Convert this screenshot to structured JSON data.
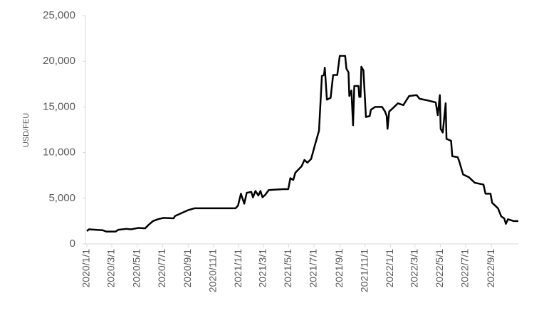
{
  "chart_data": {
    "type": "line",
    "y_label": "USD/FEU",
    "xlim": [
      "2020-01-01",
      "2022-11-05"
    ],
    "xticks": [
      {
        "value": "2020-01-01",
        "label": "2020/1/1"
      },
      {
        "value": "2020-03-01",
        "label": "2020/3/1"
      },
      {
        "value": "2020-05-01",
        "label": "2020/5/1"
      },
      {
        "value": "2020-07-01",
        "label": "2020/7/1"
      },
      {
        "value": "2020-09-01",
        "label": "2020/9/1"
      },
      {
        "value": "2020-11-01",
        "label": "2020/11/1"
      },
      {
        "value": "2021-01-01",
        "label": "2021/1/1"
      },
      {
        "value": "2021-03-01",
        "label": "2021/3/1"
      },
      {
        "value": "2021-05-01",
        "label": "2021/5/1"
      },
      {
        "value": "2021-07-01",
        "label": "2021/7/1"
      },
      {
        "value": "2021-09-01",
        "label": "2021/9/1"
      },
      {
        "value": "2021-11-01",
        "label": "2021/11/1"
      },
      {
        "value": "2022-01-01",
        "label": "2022/1/1"
      },
      {
        "value": "2022-03-01",
        "label": "2022/3/1"
      },
      {
        "value": "2022-05-01",
        "label": "2022/5/1"
      },
      {
        "value": "2022-07-01",
        "label": "2022/7/1"
      },
      {
        "value": "2022-09-01",
        "label": "2022/9/1"
      }
    ],
    "ylim": [
      0,
      25000
    ],
    "yticks": [
      0,
      {
        "value": 5000,
        "label": "5,000"
      },
      {
        "value": 10000,
        "label": "10,000"
      },
      {
        "value": 15000,
        "label": "15,000"
      },
      {
        "value": 20000,
        "label": "20,000"
      },
      {
        "value": 25000,
        "label": "25,000"
      }
    ],
    "grid": false,
    "x": [
      "2020-01-01",
      "2020-01-06",
      "2020-02-08",
      "2020-02-17",
      "2020-03-10",
      "2020-03-17",
      "2020-04-05",
      "2020-04-17",
      "2020-05-04",
      "2020-05-20",
      "2020-05-29",
      "2020-06-08",
      "2020-06-20",
      "2020-07-03",
      "2020-07-28",
      "2020-07-31",
      "2020-08-17",
      "2020-09-01",
      "2020-09-16",
      "2020-12-24",
      "2020-12-30",
      "2021-01-06",
      "2021-01-14",
      "2021-01-20",
      "2021-01-31",
      "2021-02-04",
      "2021-02-10",
      "2021-02-17",
      "2021-02-22",
      "2021-02-27",
      "2021-03-06",
      "2021-03-14",
      "2021-04-18",
      "2021-04-30",
      "2021-05-05",
      "2021-05-12",
      "2021-05-17",
      "2021-06-01",
      "2021-06-08",
      "2021-06-15",
      "2021-06-24",
      "2021-07-03",
      "2021-07-13",
      "2021-07-20",
      "2021-07-25",
      "2021-07-27",
      "2021-08-01",
      "2021-08-10",
      "2021-08-16",
      "2021-08-26",
      "2021-09-01",
      "2021-09-14",
      "2021-09-17",
      "2021-09-22",
      "2021-09-24",
      "2021-09-29",
      "2021-10-03",
      "2021-10-06",
      "2021-10-16",
      "2021-10-18",
      "2021-10-21",
      "2021-10-23",
      "2021-10-28",
      "2021-11-03",
      "2021-11-12",
      "2021-11-15",
      "2021-11-25",
      "2021-12-12",
      "2021-12-19",
      "2021-12-23",
      "2021-12-25",
      "2021-12-29",
      "2022-01-10",
      "2022-01-19",
      "2022-02-01",
      "2022-02-15",
      "2022-03-05",
      "2022-03-12",
      "2022-04-02",
      "2022-04-20",
      "2022-04-25",
      "2022-04-30",
      "2022-05-02",
      "2022-05-07",
      "2022-05-14",
      "2022-05-16",
      "2022-05-27",
      "2022-05-30",
      "2022-06-12",
      "2022-06-16",
      "2022-06-25",
      "2022-07-09",
      "2022-07-23",
      "2022-08-13",
      "2022-08-18",
      "2022-08-30",
      "2022-09-03",
      "2022-09-17",
      "2022-09-25",
      "2022-10-02",
      "2022-10-06",
      "2022-10-11",
      "2022-10-25",
      "2022-11-05"
    ],
    "series": [
      {
        "color": "#000000",
        "values": [
          1400,
          1600,
          1500,
          1350,
          1350,
          1550,
          1650,
          1600,
          1750,
          1700,
          2100,
          2500,
          2700,
          2850,
          2800,
          3050,
          3400,
          3700,
          3900,
          3900,
          4200,
          5500,
          4400,
          5600,
          5700,
          5100,
          5800,
          5300,
          5800,
          5100,
          5400,
          5900,
          6000,
          6000,
          7200,
          7000,
          7800,
          8500,
          9200,
          8900,
          9300,
          10800,
          12400,
          18400,
          18500,
          19300,
          15800,
          16000,
          18500,
          18500,
          20600,
          20600,
          19200,
          18800,
          16200,
          16800,
          13000,
          17300,
          17300,
          16100,
          16100,
          19400,
          19000,
          13900,
          14000,
          14700,
          15000,
          15000,
          14500,
          14000,
          12600,
          14500,
          15000,
          15400,
          15200,
          16200,
          16300,
          15900,
          15700,
          15500,
          14100,
          16300,
          12600,
          12200,
          15400,
          11500,
          11300,
          9600,
          9500,
          9000,
          7600,
          7300,
          6700,
          6500,
          5500,
          5500,
          4500,
          3900,
          3000,
          2800,
          2200,
          2700,
          2500,
          2500
        ]
      }
    ]
  }
}
